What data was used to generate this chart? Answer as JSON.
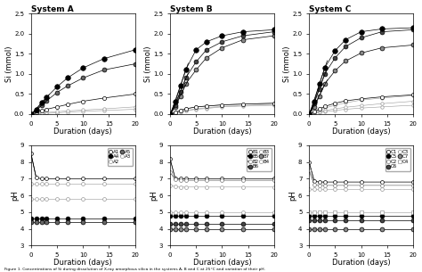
{
  "days": [
    0,
    1,
    2,
    3,
    5,
    7,
    10,
    14,
    20
  ],
  "sysA_si": {
    "A1": [
      0.0,
      0.01,
      0.015,
      0.02,
      0.03,
      0.05,
      0.07,
      0.09,
      0.12
    ],
    "A2": [
      0.0,
      0.015,
      0.03,
      0.04,
      0.06,
      0.08,
      0.1,
      0.13,
      0.18
    ],
    "A3": [
      0.0,
      0.04,
      0.08,
      0.12,
      0.18,
      0.24,
      0.32,
      0.4,
      0.5
    ],
    "A4": [
      0.0,
      0.12,
      0.28,
      0.42,
      0.68,
      0.9,
      1.15,
      1.38,
      1.6
    ],
    "A5": [
      0.0,
      0.09,
      0.22,
      0.33,
      0.54,
      0.7,
      0.9,
      1.1,
      1.25
    ]
  },
  "sysA_ph": {
    "A1": [
      8.5,
      7.05,
      7.0,
      7.0,
      7.0,
      7.0,
      7.0,
      7.0,
      7.0
    ],
    "A2": [
      6.7,
      6.7,
      6.7,
      6.7,
      6.7,
      6.7,
      6.7,
      6.7,
      6.7
    ],
    "A3": [
      5.8,
      5.8,
      5.8,
      5.8,
      5.8,
      5.8,
      5.8,
      5.8,
      5.8
    ],
    "A4": [
      4.6,
      4.6,
      4.6,
      4.6,
      4.6,
      4.6,
      4.6,
      4.6,
      4.6
    ],
    "A5": [
      4.4,
      4.4,
      4.4,
      4.4,
      4.4,
      4.4,
      4.4,
      4.4,
      4.4
    ]
  },
  "sysB_si": {
    "B1": [
      0.0,
      0.02,
      0.05,
      0.08,
      0.12,
      0.14,
      0.18,
      0.2,
      0.22
    ],
    "B2": [
      0.0,
      0.03,
      0.06,
      0.09,
      0.13,
      0.16,
      0.19,
      0.21,
      0.24
    ],
    "B3": [
      0.0,
      0.04,
      0.09,
      0.13,
      0.18,
      0.2,
      0.23,
      0.25,
      0.27
    ],
    "B4": [
      0.0,
      0.04,
      0.09,
      0.13,
      0.18,
      0.2,
      0.23,
      0.25,
      0.27
    ],
    "B5": [
      0.0,
      0.3,
      0.7,
      1.1,
      1.6,
      1.8,
      1.95,
      2.05,
      2.1
    ],
    "B6": [
      0.0,
      0.22,
      0.55,
      0.9,
      1.3,
      1.6,
      1.8,
      1.95,
      2.05
    ],
    "B7": [
      0.0,
      0.18,
      0.45,
      0.75,
      1.1,
      1.4,
      1.65,
      1.85,
      1.95
    ]
  },
  "sysB_ph": {
    "B1": [
      8.2,
      7.0,
      7.0,
      7.0,
      7.0,
      7.0,
      7.0,
      7.0,
      7.0
    ],
    "B2": [
      7.4,
      6.95,
      6.9,
      6.9,
      6.9,
      6.9,
      6.9,
      6.9,
      6.9
    ],
    "B3": [
      6.6,
      6.55,
      6.5,
      6.5,
      6.5,
      6.5,
      6.5,
      6.5,
      6.5
    ],
    "B4": [
      5.0,
      5.0,
      5.0,
      5.0,
      5.0,
      5.0,
      5.0,
      5.0,
      5.0
    ],
    "B5": [
      4.8,
      4.8,
      4.8,
      4.8,
      4.8,
      4.8,
      4.8,
      4.8,
      4.8
    ],
    "B6": [
      4.3,
      4.3,
      4.3,
      4.3,
      4.3,
      4.3,
      4.3,
      4.3,
      4.3
    ],
    "B7": [
      4.0,
      4.0,
      4.0,
      4.0,
      4.0,
      4.0,
      4.0,
      4.0,
      4.0
    ]
  },
  "sysC_si": {
    "C1": [
      0.0,
      0.02,
      0.04,
      0.06,
      0.09,
      0.12,
      0.15,
      0.18,
      0.22
    ],
    "C2": [
      0.0,
      0.03,
      0.06,
      0.09,
      0.13,
      0.17,
      0.21,
      0.26,
      0.32
    ],
    "C3": [
      0.0,
      0.05,
      0.1,
      0.15,
      0.22,
      0.28,
      0.35,
      0.4,
      0.46
    ],
    "C4": [
      0.0,
      0.06,
      0.13,
      0.19,
      0.27,
      0.33,
      0.38,
      0.43,
      0.48
    ],
    "C5": [
      0.0,
      0.32,
      0.75,
      1.15,
      1.58,
      1.85,
      2.05,
      2.12,
      2.15
    ],
    "C6": [
      0.0,
      0.27,
      0.63,
      1.0,
      1.4,
      1.68,
      1.9,
      2.05,
      2.1
    ],
    "C7": [
      0.0,
      0.18,
      0.45,
      0.75,
      1.08,
      1.32,
      1.52,
      1.65,
      1.72
    ]
  },
  "sysC_ph": {
    "C1": [
      8.0,
      6.85,
      6.8,
      6.8,
      6.8,
      6.8,
      6.8,
      6.8,
      6.8
    ],
    "C2": [
      7.5,
      6.65,
      6.6,
      6.6,
      6.6,
      6.6,
      6.6,
      6.6,
      6.6
    ],
    "C3": [
      6.4,
      6.4,
      6.4,
      6.4,
      6.4,
      6.4,
      6.4,
      6.4,
      6.4
    ],
    "C4": [
      5.0,
      5.0,
      5.0,
      5.0,
      5.0,
      5.0,
      5.0,
      5.0,
      5.0
    ],
    "C5": [
      4.8,
      4.8,
      4.8,
      4.8,
      4.8,
      4.8,
      4.8,
      4.8,
      4.8
    ],
    "C6": [
      4.5,
      4.5,
      4.5,
      4.5,
      4.5,
      4.5,
      4.5,
      4.5,
      4.5
    ],
    "C7": [
      4.0,
      4.0,
      4.0,
      4.0,
      4.0,
      4.0,
      4.0,
      4.0,
      4.0
    ]
  },
  "title_A": "System A",
  "title_B": "System B",
  "title_C": "System C",
  "xlabel": "Duration (days)",
  "ylabel_si": "Si (mmol)",
  "ylabel_ph": "pH",
  "ylim_si": [
    0.0,
    2.5
  ],
  "ylim_ph": [
    3.0,
    9.0
  ],
  "xlim": [
    0,
    20
  ],
  "caption": "Figure 1. Concentrations of Si during dissolution of X-ray amorphous silica in the systems A, B and C at 25°C and variation of their pH."
}
